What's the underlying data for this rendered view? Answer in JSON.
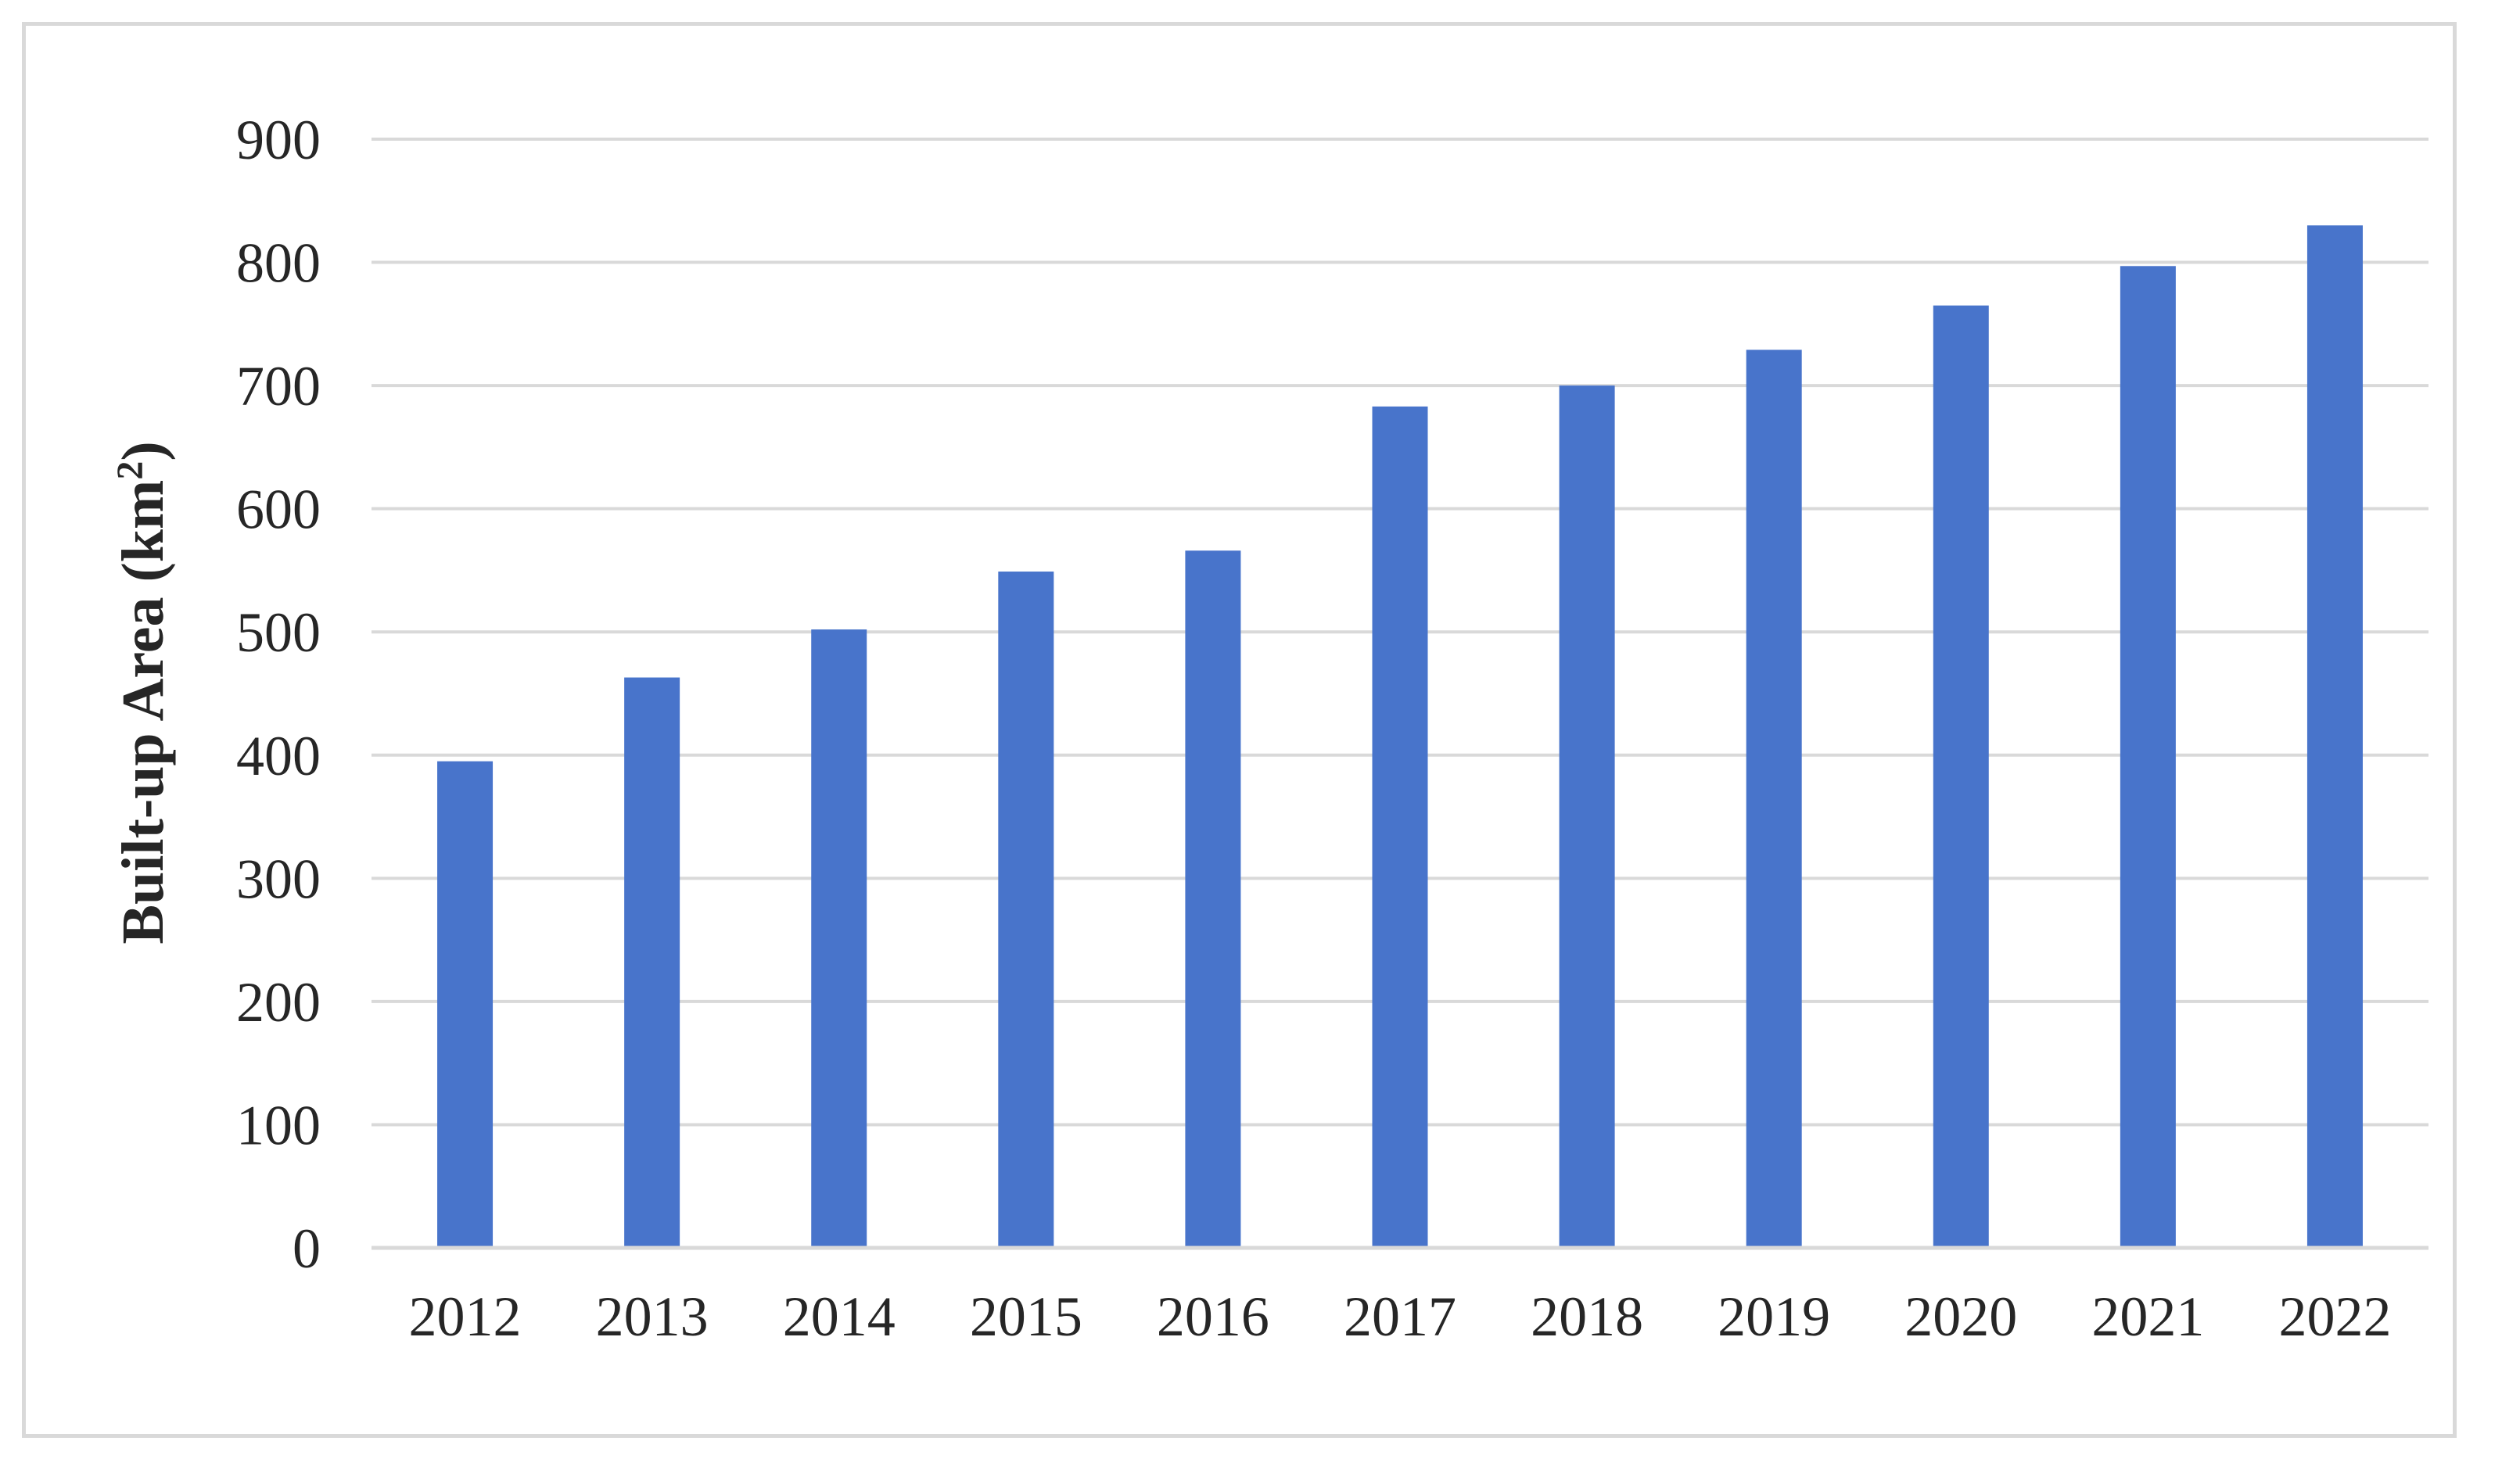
{
  "chart_data": {
    "type": "bar",
    "title": "",
    "xlabel": "",
    "ylabel": "Built-up Area (km",
    "ylabel_superscript": "2",
    "ylabel_close": ")",
    "categories": [
      "2012",
      "2013",
      "2014",
      "2015",
      "2016",
      "2017",
      "2018",
      "2019",
      "2020",
      "2021",
      "2022"
    ],
    "values": [
      395,
      463,
      502,
      549,
      566,
      683,
      700,
      729,
      765,
      797,
      830
    ],
    "ylim": [
      0,
      900
    ],
    "yticks": [
      0,
      100,
      200,
      300,
      400,
      500,
      600,
      700,
      800,
      900
    ],
    "grid": true,
    "legend": "none",
    "bar_color": "#4874CB"
  }
}
